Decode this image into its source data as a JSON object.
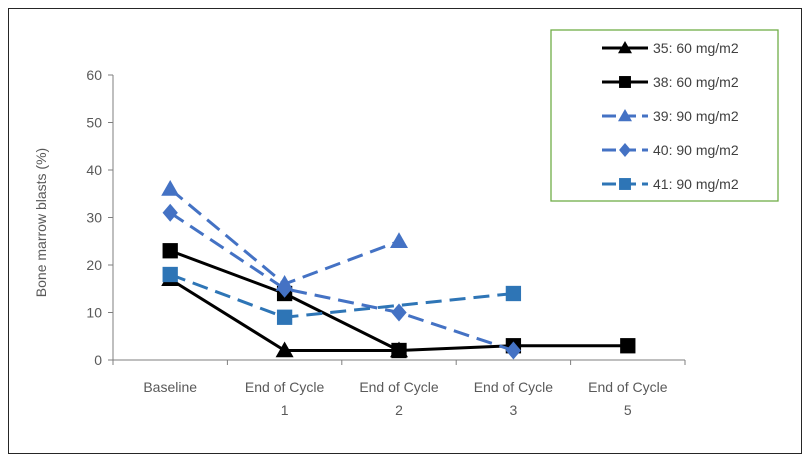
{
  "chart_data": {
    "type": "line",
    "title": "",
    "xlabel": "",
    "ylabel": "Bone marrow blasts (%)",
    "ylim": [
      0,
      60
    ],
    "yticks": [
      "0",
      "10",
      "20",
      "30",
      "40",
      "50",
      "60"
    ],
    "categories": [
      {
        "line1": "Baseline",
        "line2": ""
      },
      {
        "line1": "End of Cycle",
        "line2": "1"
      },
      {
        "line1": "End of Cycle",
        "line2": "2"
      },
      {
        "line1": "End of Cycle",
        "line2": "3"
      },
      {
        "line1": "End of Cycle",
        "line2": "5"
      }
    ],
    "grid": false,
    "legend_position": "top-right",
    "series": [
      {
        "name": "35: 60 mg/m2",
        "color": "#000000",
        "dash": "solid",
        "marker": "triangle",
        "values": [
          17,
          2,
          2,
          null,
          null
        ]
      },
      {
        "name": "38: 60 mg/m2",
        "color": "#000000",
        "dash": "solid",
        "marker": "square",
        "values": [
          23,
          14,
          2,
          3,
          3
        ]
      },
      {
        "name": "39: 90 mg/m2",
        "color": "#4472c4",
        "dash": "dashed",
        "marker": "triangle",
        "values": [
          36,
          16,
          25,
          null,
          null
        ]
      },
      {
        "name": "40: 90 mg/m2",
        "color": "#4472c4",
        "dash": "dashed",
        "marker": "diamond",
        "values": [
          31,
          15,
          10,
          2,
          null
        ]
      },
      {
        "name": "41: 90 mg/m2",
        "color": "#2e75b6",
        "dash": "dashed",
        "marker": "square",
        "values": [
          18,
          9,
          null,
          14,
          null
        ]
      }
    ],
    "legend_border_color": "#70ad47"
  }
}
